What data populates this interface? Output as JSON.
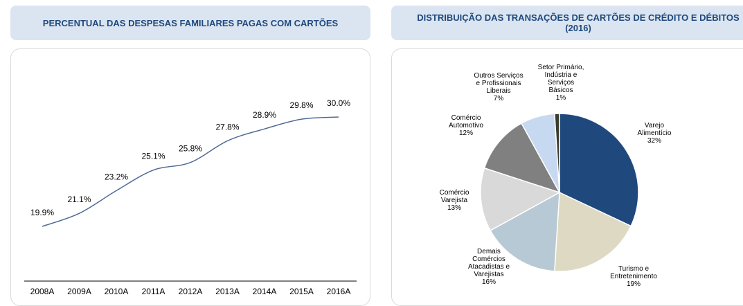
{
  "chart_data": [
    {
      "type": "line",
      "title": "PERCENTUAL DAS DESPESAS FAMILIARES PAGAS COM CARTÕES",
      "categories": [
        "2008A",
        "2009A",
        "2010A",
        "2011A",
        "2012A",
        "2013A",
        "2014A",
        "2015A",
        "2016A"
      ],
      "values": [
        19.9,
        21.1,
        23.2,
        25.1,
        25.8,
        27.8,
        28.9,
        29.8,
        30.0
      ],
      "value_labels": [
        "19.9%",
        "21.1%",
        "23.2%",
        "25.1%",
        "25.8%",
        "27.8%",
        "28.9%",
        "29.8%",
        "30.0%"
      ],
      "color": "#4f6b96"
    },
    {
      "type": "pie",
      "title": "DISTRIBUIÇÃO DAS TRANSAÇÕES DE CARTÕES DE CRÉDITO E DÉBITOS (2016)",
      "categories": [
        "Varejo\nAlimentício",
        "Turismo e\nEntretenimento",
        "Demais\nComércios\nAtacadistas e\nVarejistas",
        "Comércio\nVarejista",
        "Comércio\nAutomotivo",
        "Outros Serviços\ne Profissionais\nLiberais",
        "Setor Primário,\nIndústria e\nServiços\nBásicos"
      ],
      "values": [
        32,
        19,
        16,
        13,
        12,
        7,
        1
      ],
      "value_labels": [
        "32%",
        "19%",
        "16%",
        "13%",
        "12%",
        "7%",
        "1%"
      ],
      "colors": [
        "#1f497d",
        "#ddd9c3",
        "#b7c9d4",
        "#d9d9d9",
        "#808080",
        "#c6d9f1",
        "#3b3b2e"
      ]
    }
  ]
}
